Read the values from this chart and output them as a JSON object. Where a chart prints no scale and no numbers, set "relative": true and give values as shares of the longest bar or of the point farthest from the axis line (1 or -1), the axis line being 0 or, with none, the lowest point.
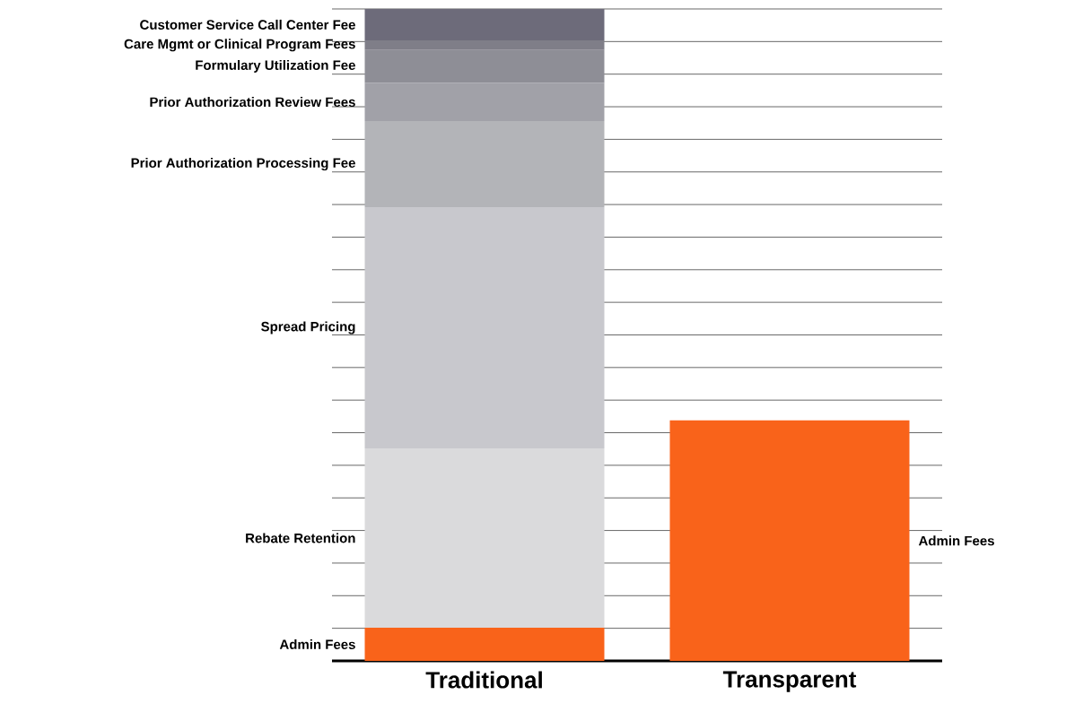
{
  "chart_data": {
    "type": "bar",
    "stacked": true,
    "relative": true,
    "grid": "y",
    "categories": [
      "Traditional",
      "Transparent"
    ],
    "series": [
      {
        "name": "Admin Fees",
        "color": "#f9631a",
        "values": [
          0.051,
          0.369
        ]
      },
      {
        "name": "Rebate Retention",
        "color": "#dadadc",
        "values": [
          0.275,
          0
        ]
      },
      {
        "name": "Spread Pricing",
        "color": "#c8c8cd",
        "values": [
          0.37,
          0
        ]
      },
      {
        "name": "Prior Authorization  Processing Fee",
        "color": "#b3b4b8",
        "values": [
          0.132,
          0
        ]
      },
      {
        "name": "Prior Authorization  Review Fees",
        "color": "#a1a1a8",
        "values": [
          0.059,
          0
        ]
      },
      {
        "name": "Formulary Utilization Fee",
        "color": "#8e8e96",
        "values": [
          0.05,
          0
        ]
      },
      {
        "name": "Care Mgmt or Clinical Program Fees",
        "color": "#7f7e88",
        "values": [
          0.015,
          0
        ]
      },
      {
        "name": "Customer Service Call Center Fee",
        "color": "#6d6b7a",
        "values": [
          0.048,
          0
        ]
      }
    ]
  }
}
